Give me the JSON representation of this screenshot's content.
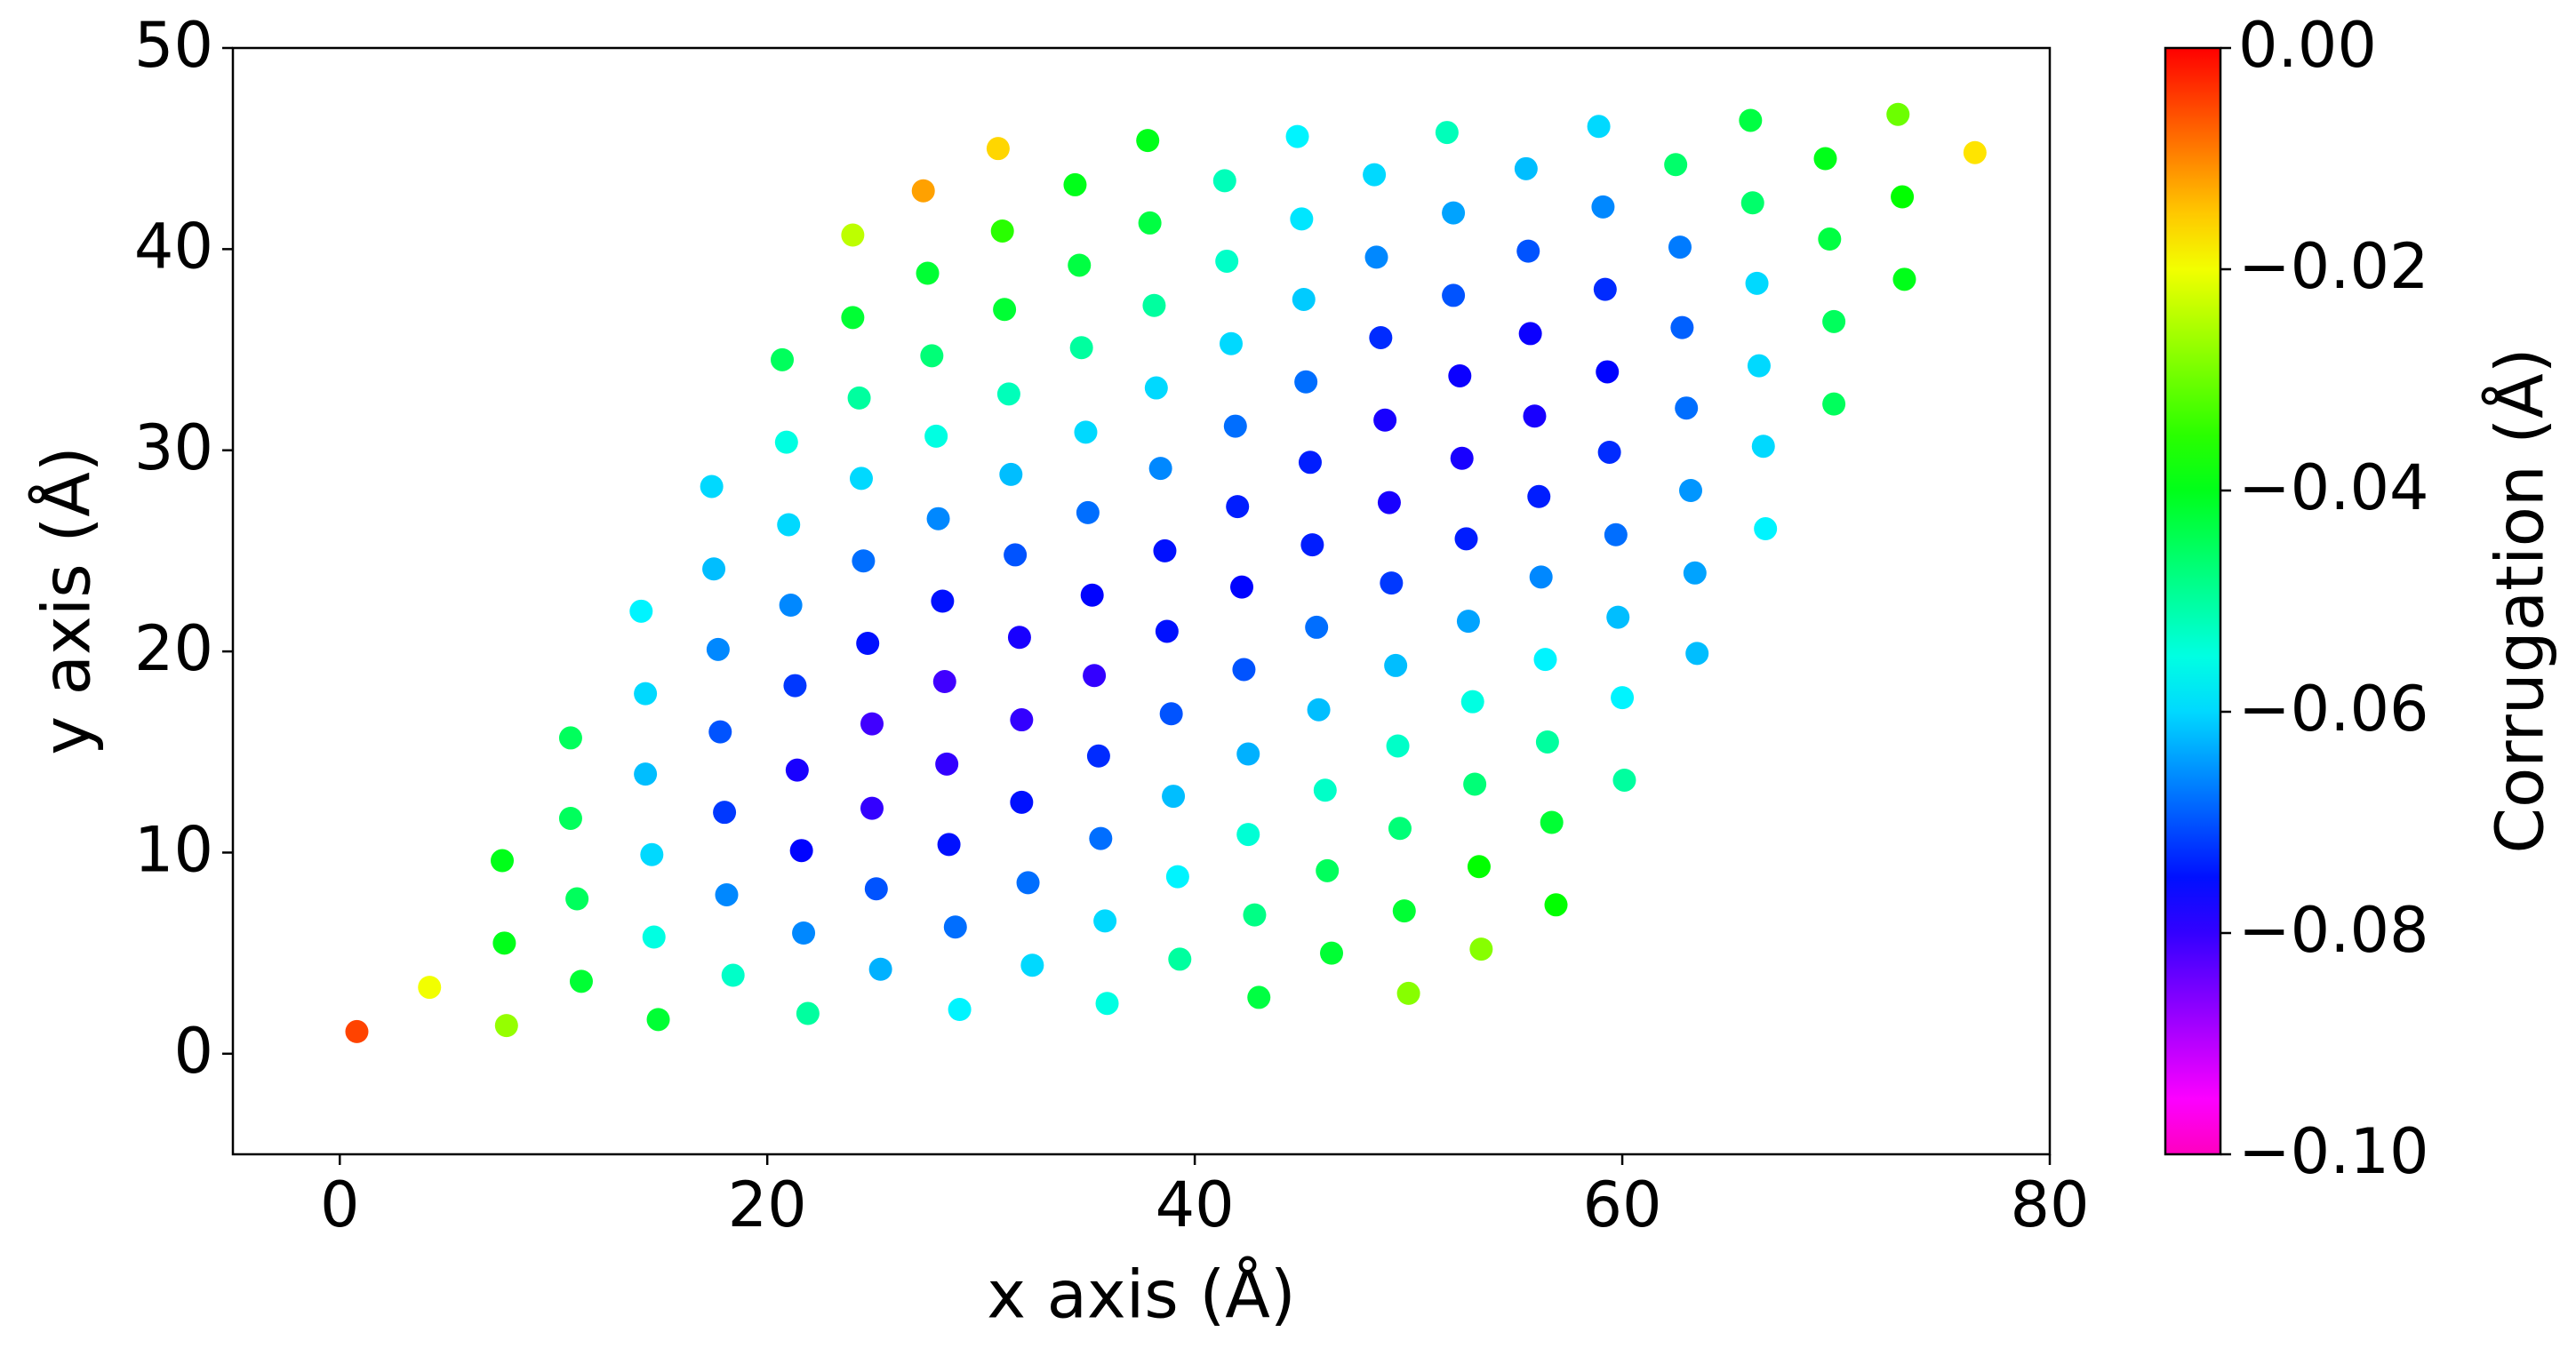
{
  "chart_data": {
    "type": "scatter",
    "x_label": "x axis (Å)",
    "y_label": "y axis (Å)",
    "xlim": [
      -5,
      80
    ],
    "ylim": [
      -5,
      50
    ],
    "xticks": [
      0,
      20,
      40,
      60,
      80
    ],
    "yticks": [
      0,
      10,
      20,
      30,
      40,
      50
    ],
    "grid": false,
    "colormap": "gist_rainbow",
    "colorbar": {
      "label": "Corrugation (Å)",
      "clim": [
        -0.1,
        0
      ],
      "ticks": [
        {
          "value": 0,
          "label": "0.00"
        },
        {
          "value": -0.02,
          "label": "−0.02"
        },
        {
          "value": -0.04,
          "label": "−0.04"
        },
        {
          "value": -0.06,
          "label": "−0.06"
        },
        {
          "value": -0.08,
          "label": "−0.08"
        },
        {
          "value": -0.1,
          "label": "−0.10"
        }
      ]
    },
    "x": [
      0.8,
      4.2,
      7.8,
      7.7,
      7.6,
      11.3,
      11.1,
      10.8,
      10.8,
      14.9,
      14.7,
      14.6,
      14.3,
      14.3,
      14.1,
      18.4,
      18.1,
      18.0,
      17.8,
      17.7,
      17.5,
      17.4,
      21.9,
      21.7,
      21.6,
      21.4,
      21.3,
      21.1,
      21.0,
      20.9,
      20.7,
      25.3,
      25.1,
      24.9,
      24.9,
      24.7,
      24.5,
      24.4,
      24.3,
      24.0,
      24.0,
      29.0,
      28.8,
      28.5,
      28.4,
      28.3,
      28.2,
      28.0,
      27.9,
      27.7,
      27.5,
      27.3,
      32.4,
      32.2,
      31.9,
      31.9,
      31.8,
      31.6,
      31.4,
      31.3,
      31.1,
      31.0,
      30.8,
      35.9,
      35.8,
      35.6,
      35.5,
      35.3,
      35.2,
      35.0,
      34.9,
      34.7,
      34.6,
      34.4,
      39.3,
      39.2,
      39.0,
      38.9,
      38.7,
      38.6,
      38.4,
      38.2,
      38.1,
      37.9,
      37.8,
      43.0,
      42.8,
      42.5,
      42.5,
      42.3,
      42.2,
      42.0,
      41.9,
      41.7,
      41.5,
      41.4,
      46.4,
      46.2,
      46.1,
      45.8,
      45.7,
      45.5,
      45.4,
      45.2,
      45.1,
      45.0,
      44.8,
      50.0,
      49.8,
      49.6,
      49.5,
      49.4,
      49.2,
      49.1,
      48.9,
      48.7,
      48.5,
      48.4,
      53.4,
      53.3,
      53.1,
      53.0,
      52.8,
      52.7,
      52.5,
      52.4,
      52.1,
      52.1,
      51.8,
      56.9,
      56.7,
      56.5,
      56.4,
      56.2,
      56.1,
      55.9,
      55.7,
      55.6,
      55.5,
      60.1,
      60.0,
      59.8,
      59.7,
      59.4,
      59.3,
      59.2,
      59.1,
      58.9,
      63.5,
      63.4,
      63.2,
      63.0,
      62.8,
      62.7,
      62.5,
      66.7,
      66.6,
      66.4,
      66.3,
      66.1,
      66.0,
      69.9,
      69.9,
      69.7,
      69.5,
      73.2,
      73.1,
      72.9,
      76.5
    ],
    "y": [
      1.1,
      3.3,
      1.4,
      5.5,
      9.6,
      3.6,
      7.7,
      11.7,
      15.7,
      1.7,
      5.8,
      9.9,
      13.9,
      17.9,
      22.0,
      3.9,
      7.9,
      12.0,
      16.0,
      20.1,
      24.1,
      28.2,
      2.0,
      6.0,
      10.1,
      14.1,
      18.3,
      22.3,
      26.3,
      30.4,
      34.5,
      4.2,
      8.2,
      12.2,
      16.4,
      20.4,
      24.5,
      28.6,
      32.6,
      36.6,
      40.7,
      2.2,
      6.3,
      10.4,
      14.4,
      18.5,
      22.5,
      26.6,
      30.7,
      34.7,
      38.8,
      42.9,
      4.4,
      8.5,
      12.5,
      16.6,
      20.7,
      24.8,
      28.8,
      32.8,
      37.0,
      40.9,
      45.0,
      2.5,
      6.6,
      10.7,
      14.8,
      18.8,
      22.8,
      26.9,
      30.9,
      35.1,
      39.2,
      43.2,
      4.7,
      8.8,
      12.8,
      16.9,
      21.0,
      25.0,
      29.1,
      33.1,
      37.2,
      41.3,
      45.4,
      2.8,
      6.9,
      10.9,
      14.9,
      19.1,
      23.2,
      27.2,
      31.2,
      35.3,
      39.4,
      43.4,
      5.0,
      9.1,
      13.1,
      17.1,
      21.2,
      25.3,
      29.4,
      33.4,
      37.5,
      41.5,
      45.6,
      3.0,
      7.1,
      11.2,
      15.3,
      19.3,
      23.4,
      27.4,
      31.5,
      35.6,
      39.6,
      43.7,
      5.2,
      9.3,
      13.4,
      17.5,
      21.5,
      25.6,
      29.6,
      33.7,
      37.7,
      41.8,
      45.8,
      7.4,
      11.5,
      15.5,
      19.6,
      23.7,
      27.7,
      31.7,
      35.8,
      39.9,
      44.0,
      13.6,
      17.7,
      21.7,
      25.8,
      29.9,
      33.9,
      38.0,
      42.1,
      46.1,
      19.9,
      23.9,
      28.0,
      32.1,
      36.1,
      40.1,
      44.2,
      26.1,
      30.2,
      34.2,
      38.3,
      42.3,
      46.4,
      32.3,
      36.4,
      40.5,
      44.5,
      38.5,
      42.6,
      46.7,
      44.8
    ],
    "c": [
      -0.005,
      -0.02,
      -0.027,
      -0.04,
      -0.04,
      -0.042,
      -0.045,
      -0.045,
      -0.045,
      -0.042,
      -0.055,
      -0.06,
      -0.062,
      -0.06,
      -0.058,
      -0.053,
      -0.066,
      -0.072,
      -0.07,
      -0.066,
      -0.062,
      -0.06,
      -0.05,
      -0.066,
      -0.076,
      -0.078,
      -0.072,
      -0.066,
      -0.06,
      -0.055,
      -0.045,
      -0.063,
      -0.07,
      -0.08,
      -0.081,
      -0.075,
      -0.068,
      -0.06,
      -0.05,
      -0.042,
      -0.024,
      -0.058,
      -0.068,
      -0.075,
      -0.08,
      -0.081,
      -0.075,
      -0.066,
      -0.055,
      -0.047,
      -0.042,
      -0.012,
      -0.06,
      -0.068,
      -0.075,
      -0.08,
      -0.078,
      -0.07,
      -0.062,
      -0.052,
      -0.042,
      -0.035,
      -0.016,
      -0.055,
      -0.06,
      -0.068,
      -0.073,
      -0.08,
      -0.076,
      -0.068,
      -0.06,
      -0.05,
      -0.043,
      -0.04,
      -0.05,
      -0.058,
      -0.062,
      -0.07,
      -0.075,
      -0.075,
      -0.066,
      -0.06,
      -0.05,
      -0.043,
      -0.04,
      -0.043,
      -0.048,
      -0.054,
      -0.063,
      -0.07,
      -0.076,
      -0.074,
      -0.068,
      -0.06,
      -0.053,
      -0.052,
      -0.042,
      -0.045,
      -0.053,
      -0.062,
      -0.068,
      -0.074,
      -0.074,
      -0.068,
      -0.061,
      -0.059,
      -0.058,
      -0.028,
      -0.042,
      -0.047,
      -0.053,
      -0.062,
      -0.072,
      -0.078,
      -0.078,
      -0.073,
      -0.066,
      -0.06,
      -0.028,
      -0.038,
      -0.047,
      -0.055,
      -0.064,
      -0.074,
      -0.078,
      -0.077,
      -0.07,
      -0.064,
      -0.052,
      -0.038,
      -0.042,
      -0.05,
      -0.058,
      -0.066,
      -0.074,
      -0.078,
      -0.077,
      -0.07,
      -0.062,
      -0.05,
      -0.058,
      -0.062,
      -0.068,
      -0.073,
      -0.076,
      -0.073,
      -0.066,
      -0.06,
      -0.062,
      -0.064,
      -0.065,
      -0.068,
      -0.069,
      -0.067,
      -0.046,
      -0.058,
      -0.06,
      -0.06,
      -0.06,
      -0.046,
      -0.043,
      -0.045,
      -0.045,
      -0.043,
      -0.04,
      -0.04,
      -0.038,
      -0.03,
      -0.017
    ]
  }
}
